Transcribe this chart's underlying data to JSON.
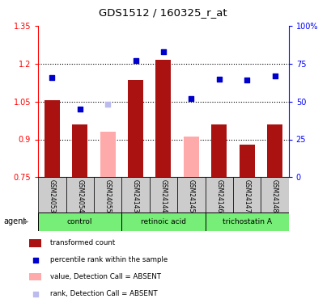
{
  "title": "GDS1512 / 160325_r_at",
  "samples": [
    "GSM24053",
    "GSM24054",
    "GSM24055",
    "GSM24143",
    "GSM24144",
    "GSM24145",
    "GSM24146",
    "GSM24147",
    "GSM24148"
  ],
  "bar_values": [
    1.055,
    0.96,
    0.93,
    1.135,
    1.215,
    0.91,
    0.96,
    0.88,
    0.96
  ],
  "bar_absent": [
    false,
    false,
    true,
    false,
    false,
    true,
    false,
    false,
    false
  ],
  "rank_values": [
    0.66,
    0.45,
    0.48,
    0.77,
    0.83,
    0.52,
    0.65,
    0.64,
    0.67
  ],
  "rank_absent": [
    false,
    false,
    true,
    false,
    false,
    false,
    false,
    false,
    false
  ],
  "ylim_left": [
    0.75,
    1.35
  ],
  "ylim_right": [
    0.0,
    1.0
  ],
  "yticks_left": [
    0.75,
    0.9,
    1.05,
    1.2,
    1.35
  ],
  "yticks_left_labels": [
    "0.75",
    "0.9",
    "1.05",
    "1.2",
    "1.35"
  ],
  "yticks_right": [
    0.0,
    0.25,
    0.5,
    0.75,
    1.0
  ],
  "yticks_right_labels": [
    "0",
    "25",
    "50",
    "75",
    "100%"
  ],
  "bar_color_present": "#aa1111",
  "bar_color_absent": "#ffaaaa",
  "rank_color_present": "#0000cc",
  "rank_color_absent": "#bbbbee",
  "group_names": [
    "control",
    "retinoic acid",
    "trichostatin A"
  ],
  "group_starts": [
    0,
    3,
    6
  ],
  "group_ends": [
    2,
    5,
    8
  ],
  "group_color": "#77ee77",
  "sample_box_color": "#cccccc",
  "legend": [
    {
      "label": "transformed count",
      "color": "#aa1111",
      "type": "rect"
    },
    {
      "label": "percentile rank within the sample",
      "color": "#0000cc",
      "type": "square"
    },
    {
      "label": "value, Detection Call = ABSENT",
      "color": "#ffaaaa",
      "type": "rect"
    },
    {
      "label": "rank, Detection Call = ABSENT",
      "color": "#bbbbee",
      "type": "square"
    }
  ],
  "baseline": 0.75,
  "grid_lines": [
    0.9,
    1.05,
    1.2
  ],
  "bar_width": 0.55
}
